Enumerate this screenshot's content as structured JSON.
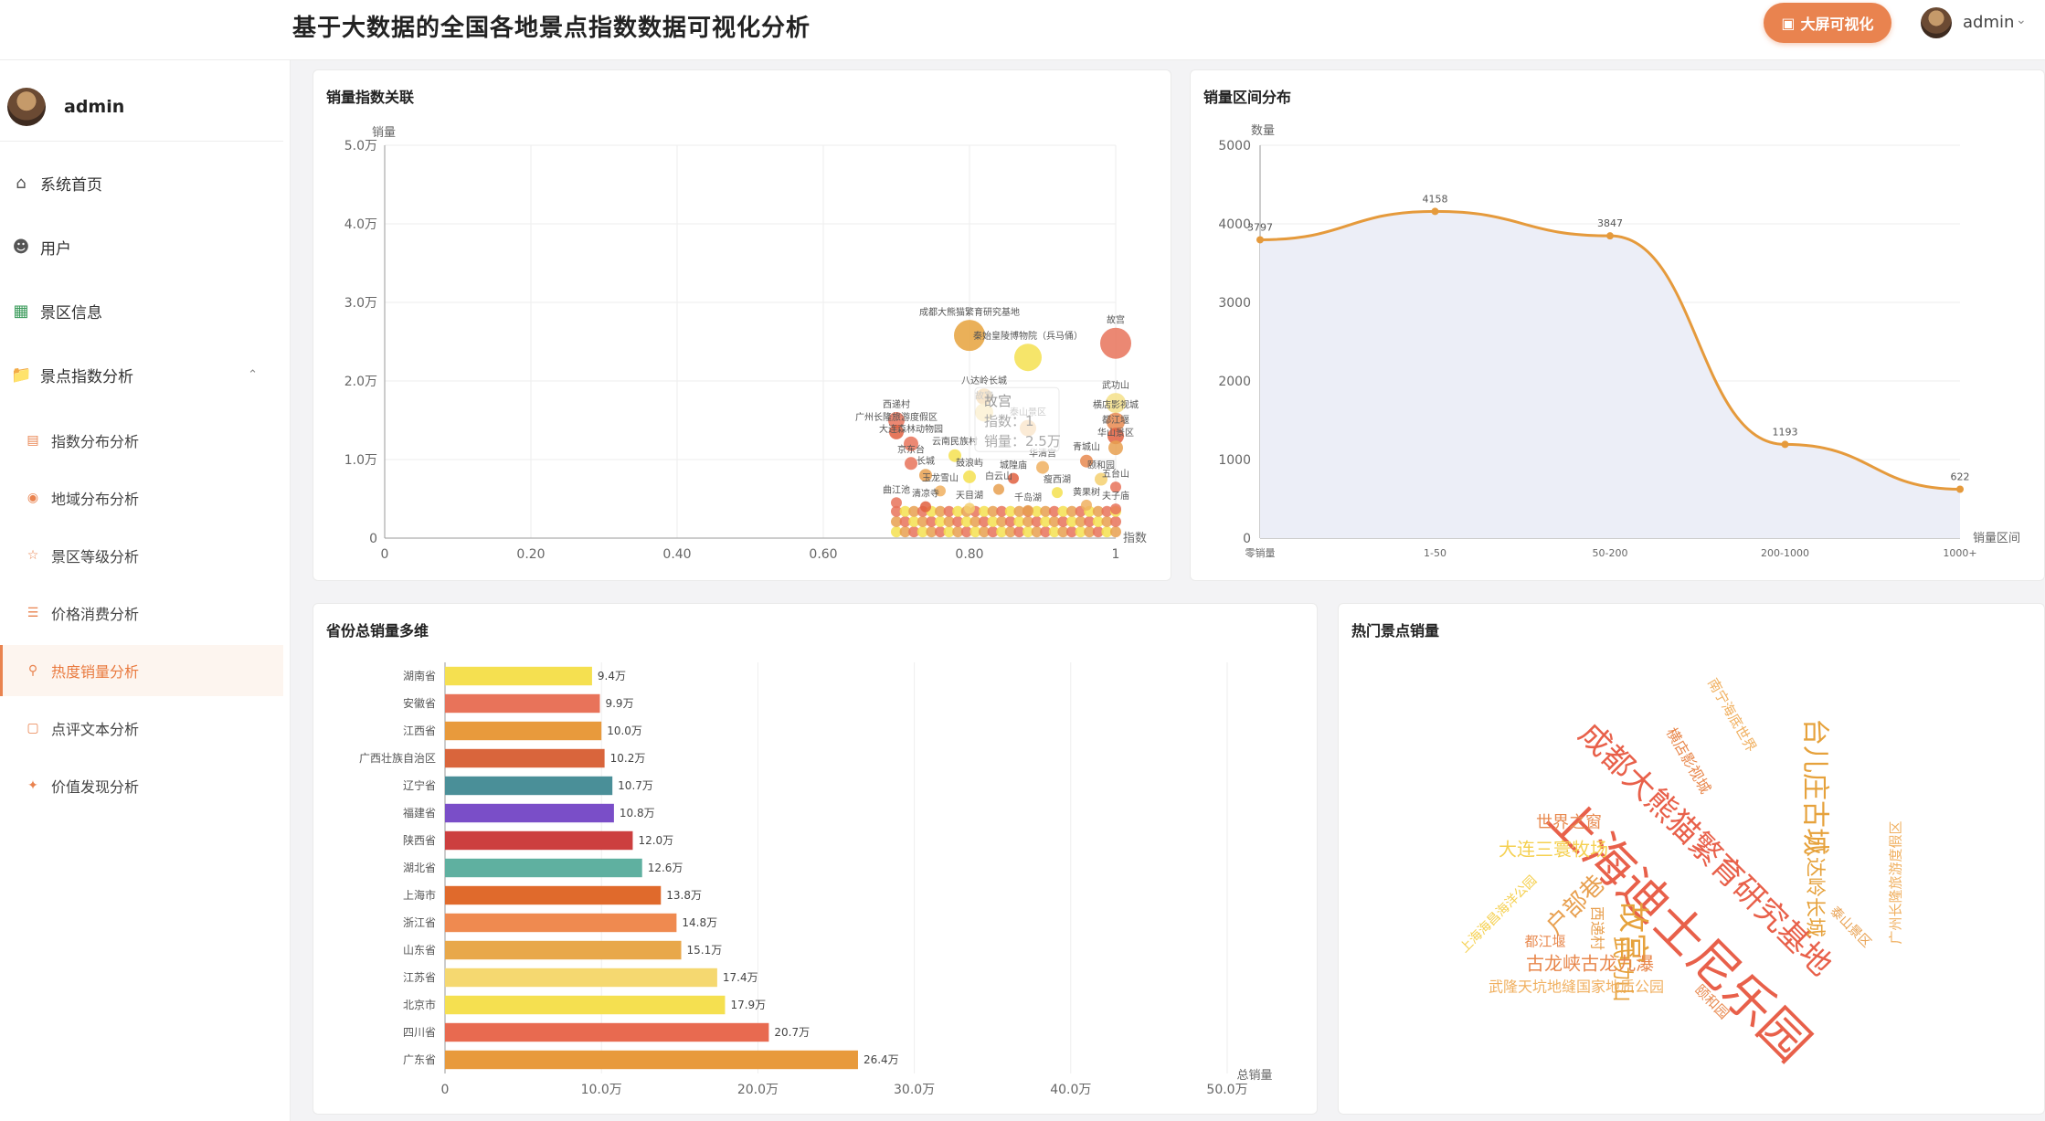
{
  "app": {
    "title": "基于大数据的全国各地景点指数数据可视化分析",
    "bigscreen_label": "大屏可视化",
    "user": "admin",
    "accent": "#e9834f"
  },
  "sidebar": {
    "user": "admin",
    "items": [
      {
        "label": "系统首页",
        "icon": "home-icon"
      },
      {
        "label": "用户",
        "icon": "user-icon"
      },
      {
        "label": "景区信息",
        "icon": "grid-icon"
      },
      {
        "label": "景点指数分析",
        "icon": "folder-icon",
        "expanded": true
      }
    ],
    "subitems": [
      {
        "label": "指数分布分析",
        "icon": "chart-icon"
      },
      {
        "label": "地域分布分析",
        "icon": "location-icon"
      },
      {
        "label": "景区等级分析",
        "icon": "star-icon"
      },
      {
        "label": "价格消费分析",
        "icon": "coins-icon"
      },
      {
        "label": "热度销量分析",
        "icon": "trophy-icon",
        "active": true
      },
      {
        "label": "点评文本分析",
        "icon": "comment-icon"
      },
      {
        "label": "价值发现分析",
        "icon": "sparkle-icon"
      }
    ]
  },
  "cards": {
    "scatter_title": "销量指数关联",
    "area_title": "销量区间分布",
    "bar_title": "省份总销量多维",
    "cloud_title": "热门景点销量"
  },
  "chart_data": [
    {
      "id": "scatter",
      "type": "scatter",
      "title": "销量指数关联",
      "xlabel": "指数",
      "ylabel": "销量",
      "xlim": [
        0,
        1
      ],
      "ylim": [
        0,
        50000
      ],
      "x_ticks": [
        "0",
        "0.20",
        "0.40",
        "0.60",
        "0.80",
        "1"
      ],
      "y_ticks": [
        "0",
        "1.0万",
        "2.0万",
        "3.0万",
        "4.0万",
        "5.0万"
      ],
      "points": [
        {
          "x": 0.8,
          "y": 25800,
          "label": "成都大熊猫繁育研究基地",
          "size": 34,
          "color": "#e6a23c"
        },
        {
          "x": 0.88,
          "y": 23000,
          "label": "秦始皇陵博物院（兵马俑）",
          "size": 30,
          "color": "#f5e050"
        },
        {
          "x": 1.0,
          "y": 24800,
          "label": "故宫",
          "size": 34,
          "color": "#e8735a"
        },
        {
          "x": 0.82,
          "y": 18000,
          "label": "八达岭长城",
          "size": 18,
          "color": "#e6a23c"
        },
        {
          "x": 1.0,
          "y": 17200,
          "label": "武功山",
          "size": 22,
          "color": "#f5e08a"
        },
        {
          "x": 0.82,
          "y": 16000,
          "label": "故宫",
          "size": 20,
          "color": "#f5d070"
        },
        {
          "x": 0.88,
          "y": 14000,
          "label": "泰山景区",
          "size": 18,
          "color": "#f0b060"
        },
        {
          "x": 1.0,
          "y": 14800,
          "label": "横店影视城",
          "size": 20,
          "color": "#e88a50"
        },
        {
          "x": 0.7,
          "y": 15000,
          "label": "西递村",
          "size": 18,
          "color": "#e8735a"
        },
        {
          "x": 0.7,
          "y": 13500,
          "label": "广州长隆旅游度假区",
          "size": 16,
          "color": "#e06040"
        },
        {
          "x": 0.72,
          "y": 12000,
          "label": "大连森林动物园",
          "size": 16,
          "color": "#e8735a"
        },
        {
          "x": 1.0,
          "y": 13000,
          "label": "都江堰",
          "size": 18,
          "color": "#e06040"
        },
        {
          "x": 1.0,
          "y": 11500,
          "label": "华山景区",
          "size": 16,
          "color": "#e8a050"
        },
        {
          "x": 0.78,
          "y": 10500,
          "label": "云南民族村",
          "size": 14,
          "color": "#f5e050"
        },
        {
          "x": 0.72,
          "y": 9500,
          "label": "京东台",
          "size": 14,
          "color": "#e8735a"
        },
        {
          "x": 0.9,
          "y": 9000,
          "label": "华清宫",
          "size": 14,
          "color": "#f0b060"
        },
        {
          "x": 0.96,
          "y": 9800,
          "label": "青城山",
          "size": 14,
          "color": "#e88a50"
        },
        {
          "x": 0.98,
          "y": 7500,
          "label": "颐和园",
          "size": 14,
          "color": "#f5d070"
        },
        {
          "x": 0.74,
          "y": 8000,
          "label": "长城",
          "size": 14,
          "color": "#e8a050"
        },
        {
          "x": 0.8,
          "y": 7800,
          "label": "鼓浪屿",
          "size": 14,
          "color": "#f5e050"
        },
        {
          "x": 0.86,
          "y": 7600,
          "label": "城隍庙",
          "size": 12,
          "color": "#e06040"
        },
        {
          "x": 1.0,
          "y": 6500,
          "label": "五台山",
          "size": 12,
          "color": "#e8735a"
        },
        {
          "x": 0.76,
          "y": 6000,
          "label": "玉龙雪山",
          "size": 12,
          "color": "#f0b060"
        },
        {
          "x": 0.84,
          "y": 6200,
          "label": "白云山",
          "size": 12,
          "color": "#e8a050"
        },
        {
          "x": 0.92,
          "y": 5800,
          "label": "瘦西湖",
          "size": 12,
          "color": "#f5e050"
        },
        {
          "x": 0.7,
          "y": 4500,
          "label": "曲江池",
          "size": 12,
          "color": "#e8735a"
        },
        {
          "x": 0.74,
          "y": 4000,
          "label": "清凉寺",
          "size": 12,
          "color": "#e06040"
        },
        {
          "x": 0.8,
          "y": 3800,
          "label": "天目湖",
          "size": 12,
          "color": "#f5d070"
        },
        {
          "x": 0.88,
          "y": 3500,
          "label": "千岛湖",
          "size": 12,
          "color": "#e8a050"
        },
        {
          "x": 0.96,
          "y": 4200,
          "label": "黄果树",
          "size": 12,
          "color": "#f0b060"
        },
        {
          "x": 1.0,
          "y": 3700,
          "label": "夫子庙",
          "size": 12,
          "color": "#e8735a"
        }
      ],
      "tooltip": {
        "name": "故宫",
        "index": "指数：1",
        "sales": "销量：2.5万"
      }
    },
    {
      "id": "area",
      "type": "area",
      "title": "销量区间分布",
      "xlabel": "销量区间",
      "ylabel": "数量",
      "categories": [
        "零销量",
        "1-50",
        "50-200",
        "200-1000",
        "1000+"
      ],
      "values": [
        3797,
        4158,
        3847,
        1193,
        622
      ],
      "ylim": [
        0,
        5000
      ],
      "y_ticks": [
        "0",
        "1000",
        "2000",
        "3000",
        "4000",
        "5000"
      ],
      "color": "#e59a3c"
    },
    {
      "id": "bar",
      "type": "bar",
      "title": "省份总销量多维",
      "xlabel": "总销量",
      "categories": [
        "湖南省",
        "安徽省",
        "江西省",
        "广西壮族自治区",
        "辽宁省",
        "福建省",
        "陕西省",
        "湖北省",
        "上海市",
        "浙江省",
        "山东省",
        "江苏省",
        "北京市",
        "四川省",
        "广东省"
      ],
      "values": [
        94000,
        99000,
        100000,
        102000,
        107000,
        108000,
        120000,
        126000,
        138000,
        148000,
        151000,
        174000,
        179000,
        207000,
        264000
      ],
      "value_labels": [
        "9.4万",
        "9.9万",
        "10.0万",
        "10.2万",
        "10.7万",
        "10.8万",
        "12.0万",
        "12.6万",
        "13.8万",
        "14.8万",
        "15.1万",
        "17.4万",
        "17.9万",
        "20.7万",
        "26.4万"
      ],
      "colors": [
        "#f5e050",
        "#e8735a",
        "#e89a3c",
        "#d9653c",
        "#4a8f98",
        "#7a4ec8",
        "#cc3f3f",
        "#5fb0a0",
        "#e06a2c",
        "#ef8a50",
        "#e8a84a",
        "#f5d870",
        "#f5e050",
        "#e86a50",
        "#e89a3c"
      ],
      "xlim": [
        0,
        500000
      ],
      "x_ticks": [
        "0",
        "10.0万",
        "20.0万",
        "30.0万",
        "40.0万",
        "50.0万"
      ]
    },
    {
      "id": "cloud",
      "type": "wordcloud",
      "title": "热门景点销量",
      "words": [
        {
          "text": "上海迪士尼乐园",
          "color": "#e8604a"
        },
        {
          "text": "成都大熊猫繁育研究基地",
          "color": "#e8604a"
        },
        {
          "text": "台儿庄古城",
          "color": "#e6a23c"
        },
        {
          "text": "故宫",
          "color": "#e6a23c"
        },
        {
          "text": "八达岭长城",
          "color": "#e6a23c"
        },
        {
          "text": "户部巷",
          "color": "#e8a050"
        },
        {
          "text": "武功山",
          "color": "#e6a23c"
        },
        {
          "text": "大连三寰牧场",
          "color": "#f5d050"
        },
        {
          "text": "世界之窗",
          "color": "#e88a50"
        },
        {
          "text": "古龙峡古龙九瀑",
          "color": "#e8864a"
        },
        {
          "text": "横店影视城",
          "color": "#e8864a"
        },
        {
          "text": "南宁海底世界",
          "color": "#f0b060"
        },
        {
          "text": "广州长隆旅游度假区",
          "color": "#f0b060"
        },
        {
          "text": "上海海昌海洋公园",
          "color": "#f5d050"
        },
        {
          "text": "武隆天坑地缝国家地质公园",
          "color": "#f0b060"
        },
        {
          "text": "西递村",
          "color": "#e8a050"
        },
        {
          "text": "都江堰",
          "color": "#e88a50"
        },
        {
          "text": "颐和园",
          "color": "#e88a50"
        },
        {
          "text": "泰山景区",
          "color": "#e8a050"
        }
      ]
    }
  ]
}
